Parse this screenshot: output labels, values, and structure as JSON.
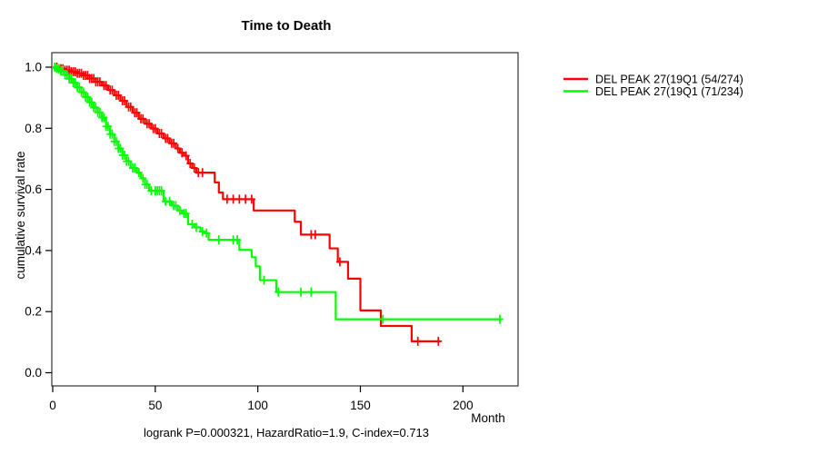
{
  "chart_data": {
    "type": "line",
    "subtype": "kaplan-meier-survival-step",
    "title": "Time to Death",
    "xlabel": "Month",
    "ylabel": "cumulative survival rate",
    "annotation": "logrank P=0.000321, HazardRatio=1.9, C-index=0.713",
    "xlim": [
      0,
      227
    ],
    "ylim": [
      0.0,
      1.0
    ],
    "xticks": [
      0,
      50,
      100,
      150,
      200
    ],
    "yticks": [
      0.0,
      0.2,
      0.4,
      0.6,
      0.8,
      1.0
    ],
    "grid": false,
    "legend_position": "right-outside",
    "series": [
      {
        "name": "group-high",
        "label": "DEL PEAK 27(19Q1 (54/274)",
        "color": "#ff0000",
        "end_month": 189,
        "steps": [
          [
            0,
            1.0
          ],
          [
            3,
            0.995
          ],
          [
            6,
            0.99
          ],
          [
            9,
            0.985
          ],
          [
            12,
            0.98
          ],
          [
            15,
            0.973
          ],
          [
            18,
            0.963
          ],
          [
            21,
            0.952
          ],
          [
            24,
            0.94
          ],
          [
            27,
            0.925
          ],
          [
            30,
            0.908
          ],
          [
            33,
            0.89
          ],
          [
            36,
            0.87
          ],
          [
            39,
            0.851
          ],
          [
            42,
            0.831
          ],
          [
            45,
            0.815
          ],
          [
            48,
            0.799
          ],
          [
            51,
            0.783
          ],
          [
            54,
            0.767
          ],
          [
            57,
            0.751
          ],
          [
            60,
            0.734
          ],
          [
            62,
            0.72
          ],
          [
            64,
            0.71
          ],
          [
            66,
            0.685
          ],
          [
            68,
            0.67
          ],
          [
            70,
            0.655
          ],
          [
            79,
            0.623
          ],
          [
            81,
            0.59
          ],
          [
            83,
            0.568
          ],
          [
            98,
            0.531
          ],
          [
            118,
            0.494
          ],
          [
            121,
            0.452
          ],
          [
            135,
            0.407
          ],
          [
            139,
            0.363
          ],
          [
            144,
            0.308
          ],
          [
            150,
            0.204
          ],
          [
            160,
            0.153
          ],
          [
            175,
            0.103
          ]
        ],
        "censor_months": [
          1,
          2,
          3,
          4,
          5,
          6,
          7,
          8,
          9,
          10,
          11,
          12,
          13,
          14,
          15,
          16,
          17,
          18,
          19,
          20,
          21,
          22,
          23,
          25,
          26,
          28,
          29,
          31,
          32,
          34,
          35,
          37,
          38,
          40,
          41,
          43,
          44,
          46,
          47,
          49,
          50,
          52,
          53,
          55,
          56,
          58,
          59,
          61,
          63,
          65,
          67,
          69,
          71,
          73,
          85,
          88,
          91,
          94,
          97,
          126,
          128,
          140,
          178,
          188
        ]
      },
      {
        "name": "group-low",
        "label": "DEL PEAK 27(19Q1 (71/234)",
        "color": "#00ff00",
        "end_month": 218.5,
        "steps": [
          [
            0,
            1.0
          ],
          [
            2,
            0.995
          ],
          [
            4,
            0.988
          ],
          [
            6,
            0.975
          ],
          [
            8,
            0.962
          ],
          [
            10,
            0.949
          ],
          [
            12,
            0.934
          ],
          [
            14,
            0.918
          ],
          [
            16,
            0.902
          ],
          [
            18,
            0.885
          ],
          [
            20,
            0.868
          ],
          [
            22,
            0.852
          ],
          [
            24,
            0.835
          ],
          [
            26,
            0.806
          ],
          [
            28,
            0.781
          ],
          [
            30,
            0.757
          ],
          [
            32,
            0.734
          ],
          [
            34,
            0.712
          ],
          [
            36,
            0.692
          ],
          [
            38,
            0.67
          ],
          [
            41,
            0.655
          ],
          [
            43,
            0.636
          ],
          [
            45,
            0.616
          ],
          [
            47,
            0.596
          ],
          [
            54,
            0.561
          ],
          [
            58,
            0.547
          ],
          [
            61,
            0.531
          ],
          [
            63,
            0.521
          ],
          [
            66,
            0.486
          ],
          [
            69,
            0.476
          ],
          [
            72,
            0.462
          ],
          [
            74,
            0.457
          ],
          [
            76,
            0.435
          ],
          [
            91,
            0.402
          ],
          [
            97,
            0.378
          ],
          [
            99,
            0.348
          ],
          [
            101,
            0.303
          ],
          [
            109,
            0.264
          ],
          [
            138,
            0.175
          ]
        ],
        "censor_months": [
          1,
          2,
          3,
          4,
          5,
          6,
          7,
          8,
          9,
          10,
          11,
          12,
          13,
          14,
          15,
          16,
          17,
          18,
          19,
          20,
          21,
          22,
          23,
          24,
          25,
          26,
          27,
          28,
          29,
          30,
          31,
          32,
          33,
          34,
          35,
          36,
          37,
          39,
          40,
          42,
          44,
          45,
          46,
          48,
          50,
          51,
          52,
          53,
          55,
          57,
          59,
          60,
          62,
          64,
          65,
          68,
          70,
          73,
          75,
          81,
          88,
          90,
          103,
          110,
          121,
          126,
          161,
          218
        ]
      }
    ]
  }
}
